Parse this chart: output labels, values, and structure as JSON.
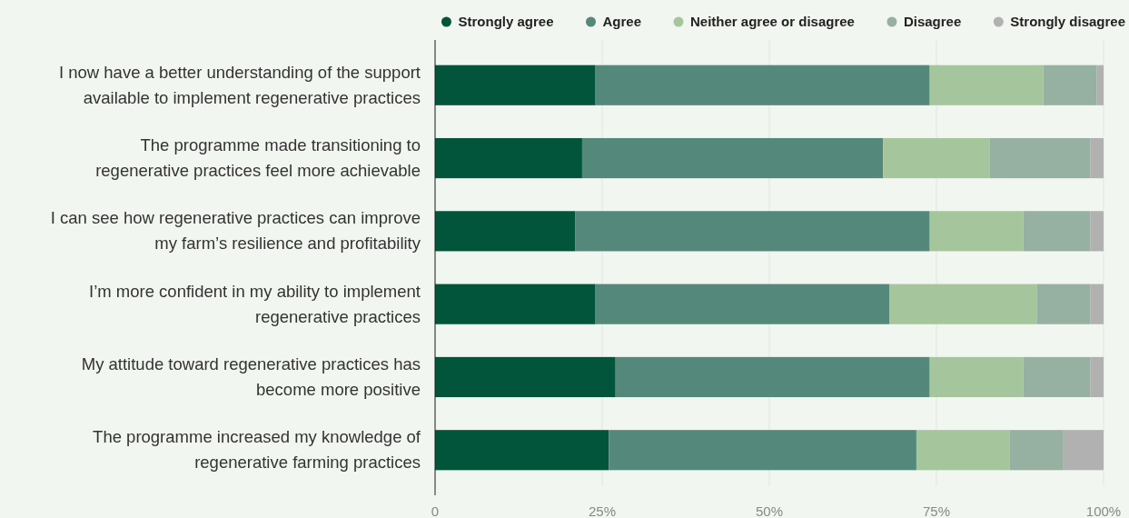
{
  "chart_data": {
    "type": "bar",
    "orientation": "horizontal",
    "stacked": true,
    "categories": [
      "I now have a better understanding of the support\navailable to implement regenerative practices",
      "The programme made transitioning to\nregenerative practices feel more achievable",
      "I can see how regenerative practices can improve\nmy farm’s resilience and profitability",
      "I’m more confident in my ability to implement\nregenerative practices",
      "My attitude toward regenerative practices has\nbecome more positive",
      "The programme increased my knowledge of\nregenerative farming practices"
    ],
    "series": [
      {
        "name": "Strongly agree",
        "color": "#02553a",
        "values": [
          24,
          22,
          21,
          24,
          27,
          26
        ]
      },
      {
        "name": "Agree",
        "color": "#53887a",
        "values": [
          50,
          45,
          53,
          44,
          47,
          46
        ]
      },
      {
        "name": "Neither agree or disagree",
        "color": "#a5c69c",
        "values": [
          17,
          16,
          14,
          22,
          14,
          14
        ]
      },
      {
        "name": "Disagree",
        "color": "#96b0a2",
        "values": [
          8,
          15,
          10,
          8,
          10,
          8
        ]
      },
      {
        "name": "Strongly disagree",
        "color": "#b1b1b1",
        "values": [
          1,
          2,
          2,
          2,
          2,
          6
        ]
      }
    ],
    "xlim": [
      0,
      100
    ],
    "xticks": [
      {
        "value": 0,
        "label": "0"
      },
      {
        "value": 25,
        "label": "25%"
      },
      {
        "value": 50,
        "label": "50%"
      },
      {
        "value": 75,
        "label": "75%"
      },
      {
        "value": 100,
        "label": "100%"
      }
    ],
    "grid": "x",
    "legend": "top right"
  }
}
